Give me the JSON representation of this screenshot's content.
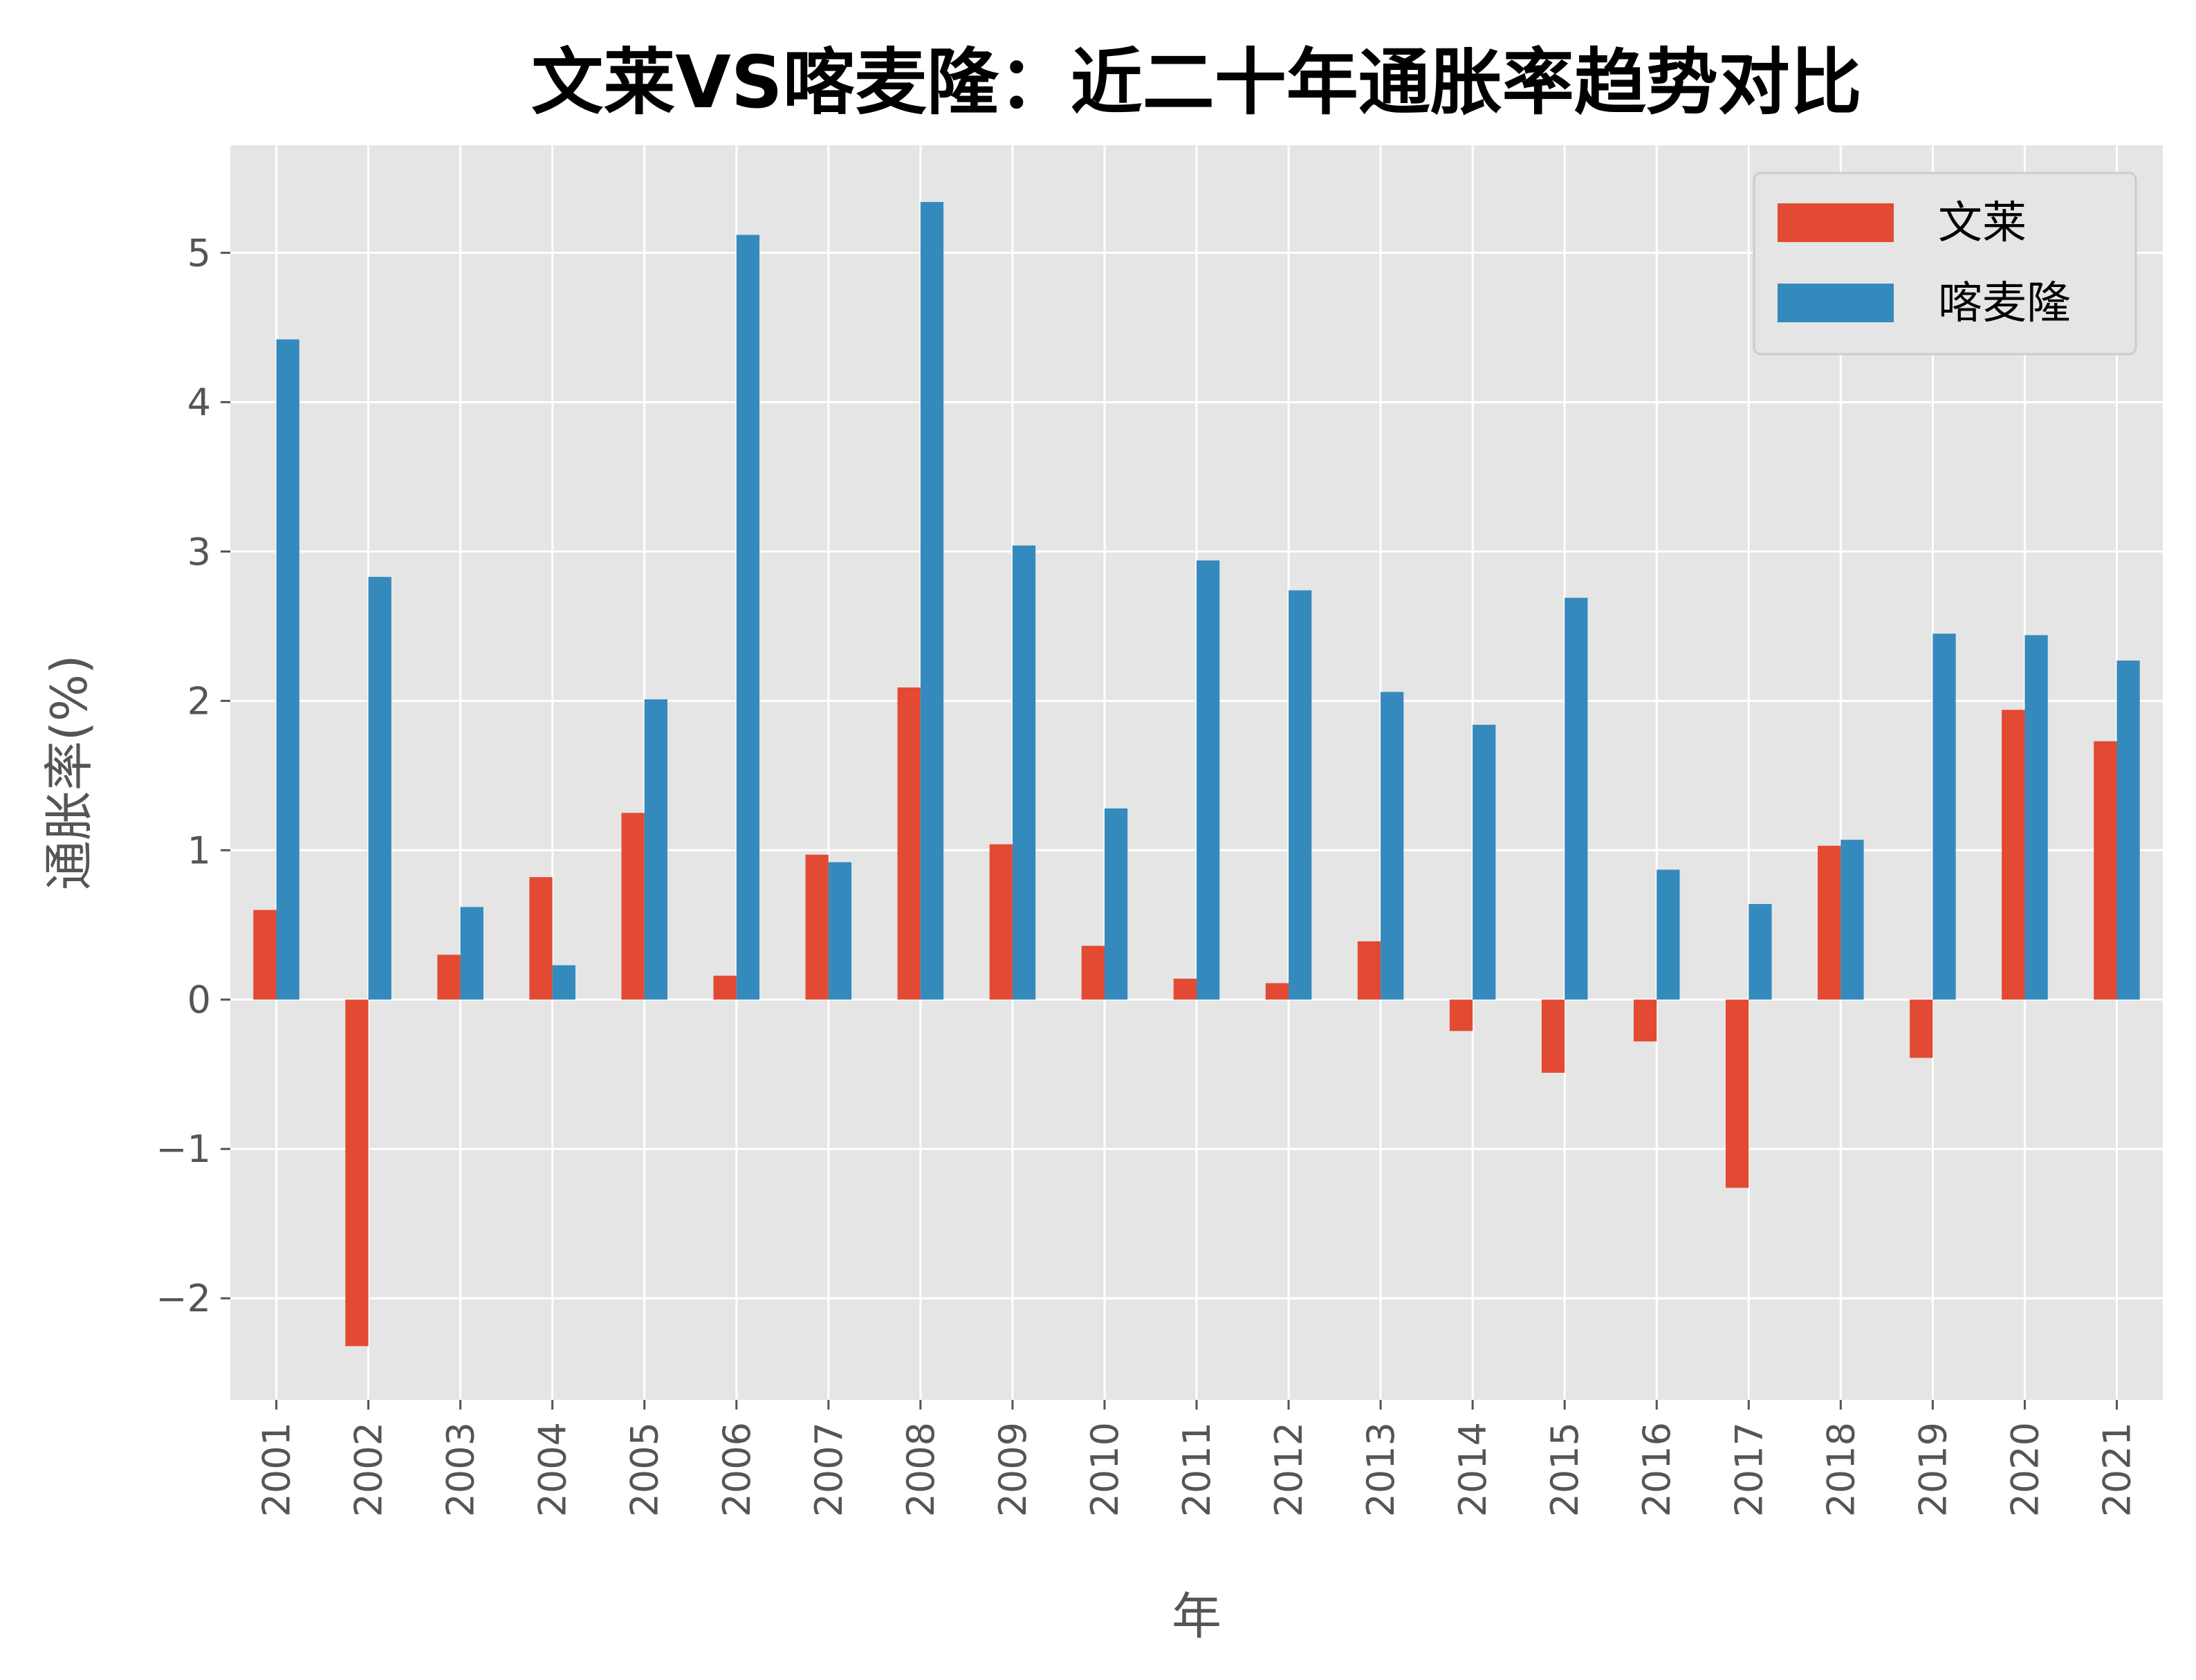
{
  "chart_data": {
    "type": "bar",
    "title": "文莱VS喀麦隆：近二十年通胀率趋势对比",
    "xlabel": "年",
    "ylabel": "通胀率(%)",
    "categories": [
      "2001",
      "2002",
      "2003",
      "2004",
      "2005",
      "2006",
      "2007",
      "2008",
      "2009",
      "2010",
      "2011",
      "2012",
      "2013",
      "2014",
      "2015",
      "2016",
      "2017",
      "2018",
      "2019",
      "2020",
      "2021"
    ],
    "series": [
      {
        "name": "文莱",
        "color": "#E24A33",
        "values": [
          0.6,
          -2.32,
          0.3,
          0.82,
          1.25,
          0.16,
          0.97,
          2.09,
          1.04,
          0.36,
          0.14,
          0.11,
          0.39,
          -0.21,
          -0.49,
          -0.28,
          -1.26,
          1.03,
          -0.39,
          1.94,
          1.73
        ]
      },
      {
        "name": "喀麦隆",
        "color": "#348ABD",
        "values": [
          4.42,
          2.83,
          0.62,
          0.23,
          2.01,
          5.12,
          0.92,
          5.34,
          3.04,
          1.28,
          2.94,
          2.74,
          2.06,
          1.84,
          2.69,
          0.87,
          0.64,
          1.07,
          2.45,
          2.44,
          2.27
        ]
      }
    ],
    "ylim": [
      -2.68,
      5.72
    ],
    "yticks": [
      -2,
      -1,
      0,
      1,
      2,
      3,
      4,
      5
    ],
    "ytick_labels": [
      "−2",
      "−1",
      "0",
      "1",
      "2",
      "3",
      "4",
      "5"
    ],
    "grid": true,
    "legend_position": "top-right",
    "style": {
      "plot_background": "#E5E5E5",
      "grid_color": "#FFFFFF",
      "tick_color": "#555555"
    }
  }
}
